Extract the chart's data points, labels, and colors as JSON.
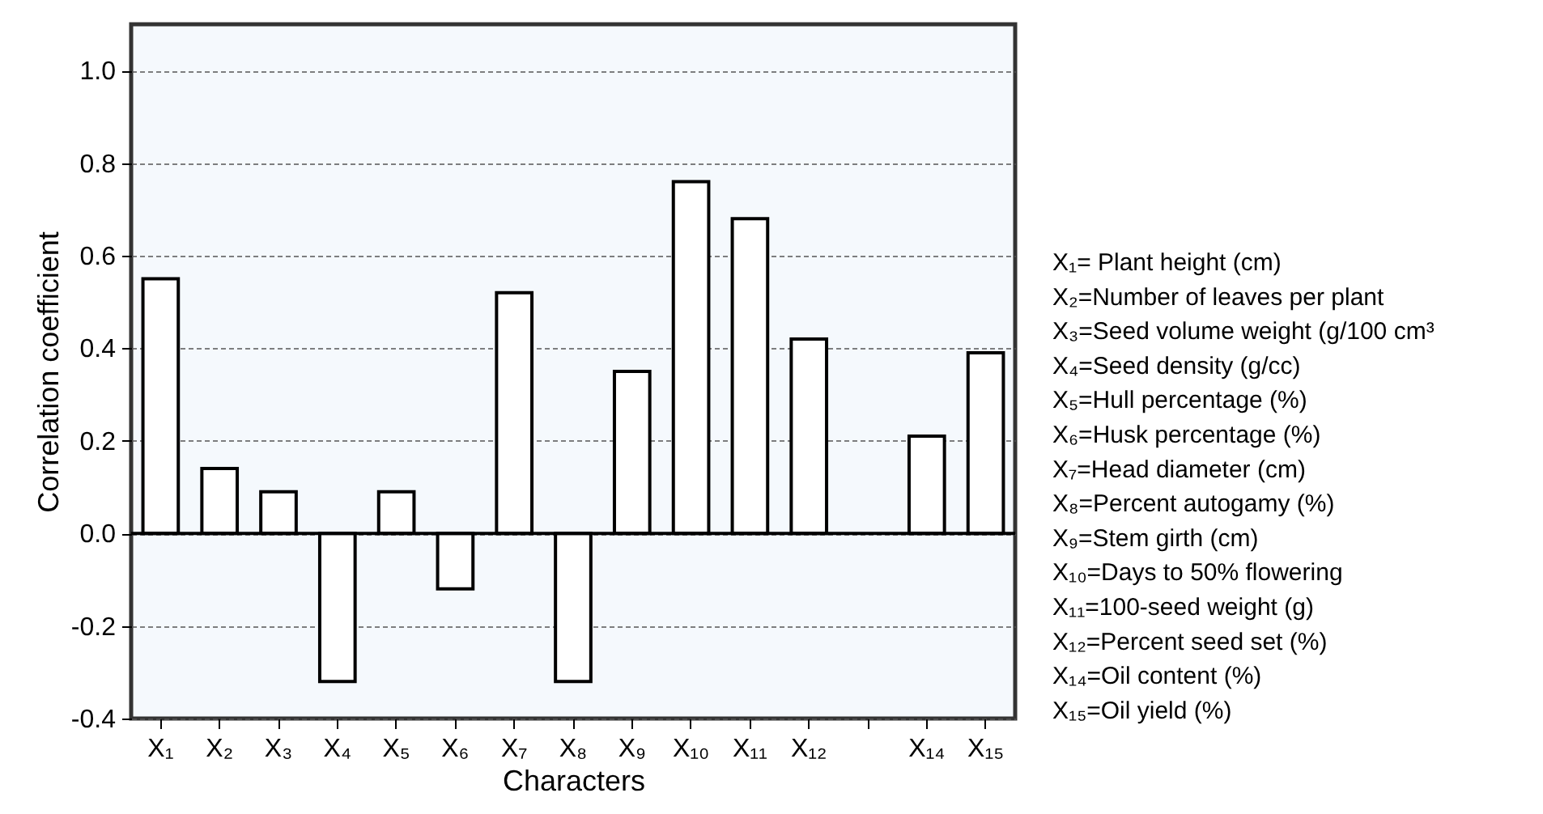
{
  "chart_data": {
    "type": "bar",
    "xlabel": "Characters",
    "ylabel": "Correlation coefficient",
    "categories": [
      "X₁",
      "X₂",
      "X₃",
      "X₄",
      "X₅",
      "X₆",
      "X₇",
      "X₈",
      "X₉",
      "X₁₀",
      "X₁₁",
      "X₁₂",
      null,
      "X₁₄",
      "X₁₅"
    ],
    "values": [
      0.55,
      0.14,
      0.09,
      -0.32,
      0.09,
      -0.12,
      0.52,
      -0.32,
      0.35,
      0.76,
      0.68,
      0.42,
      null,
      0.21,
      0.39
    ],
    "color": "#ffffff",
    "ylim": [
      -0.4,
      1.1
    ],
    "yticks": [
      -0.4,
      -0.2,
      {
        "value": 0,
        "label": "0.0"
      },
      0.2,
      0.4,
      0.6,
      0.8,
      {
        "value": 1.0,
        "label": "1.0"
      }
    ],
    "grid": "y",
    "ref_lines": [
      {
        "axis": "y",
        "value": 0,
        "color": "#000000",
        "line_style": "solid"
      }
    ],
    "annotations": [
      "X₁= Plant height (cm)",
      "X₂=Number of leaves per plant",
      "X₃=Seed volume weight (g/100 cm³",
      "X₄=Seed density (g/cc)",
      "X₅=Hull percentage (%)",
      "X₆=Husk percentage (%)",
      "X₇=Head diameter (cm)",
      "X₈=Percent autogamy (%)",
      "X₉=Stem girth (cm)",
      "X₁₀=Days to 50% flowering",
      "X₁₁=100-seed weight (g)",
      "X₁₂=Percent seed set (%)",
      "X₁₄=Oil content (%)",
      "X₁₅=Oil yield (%)"
    ]
  }
}
